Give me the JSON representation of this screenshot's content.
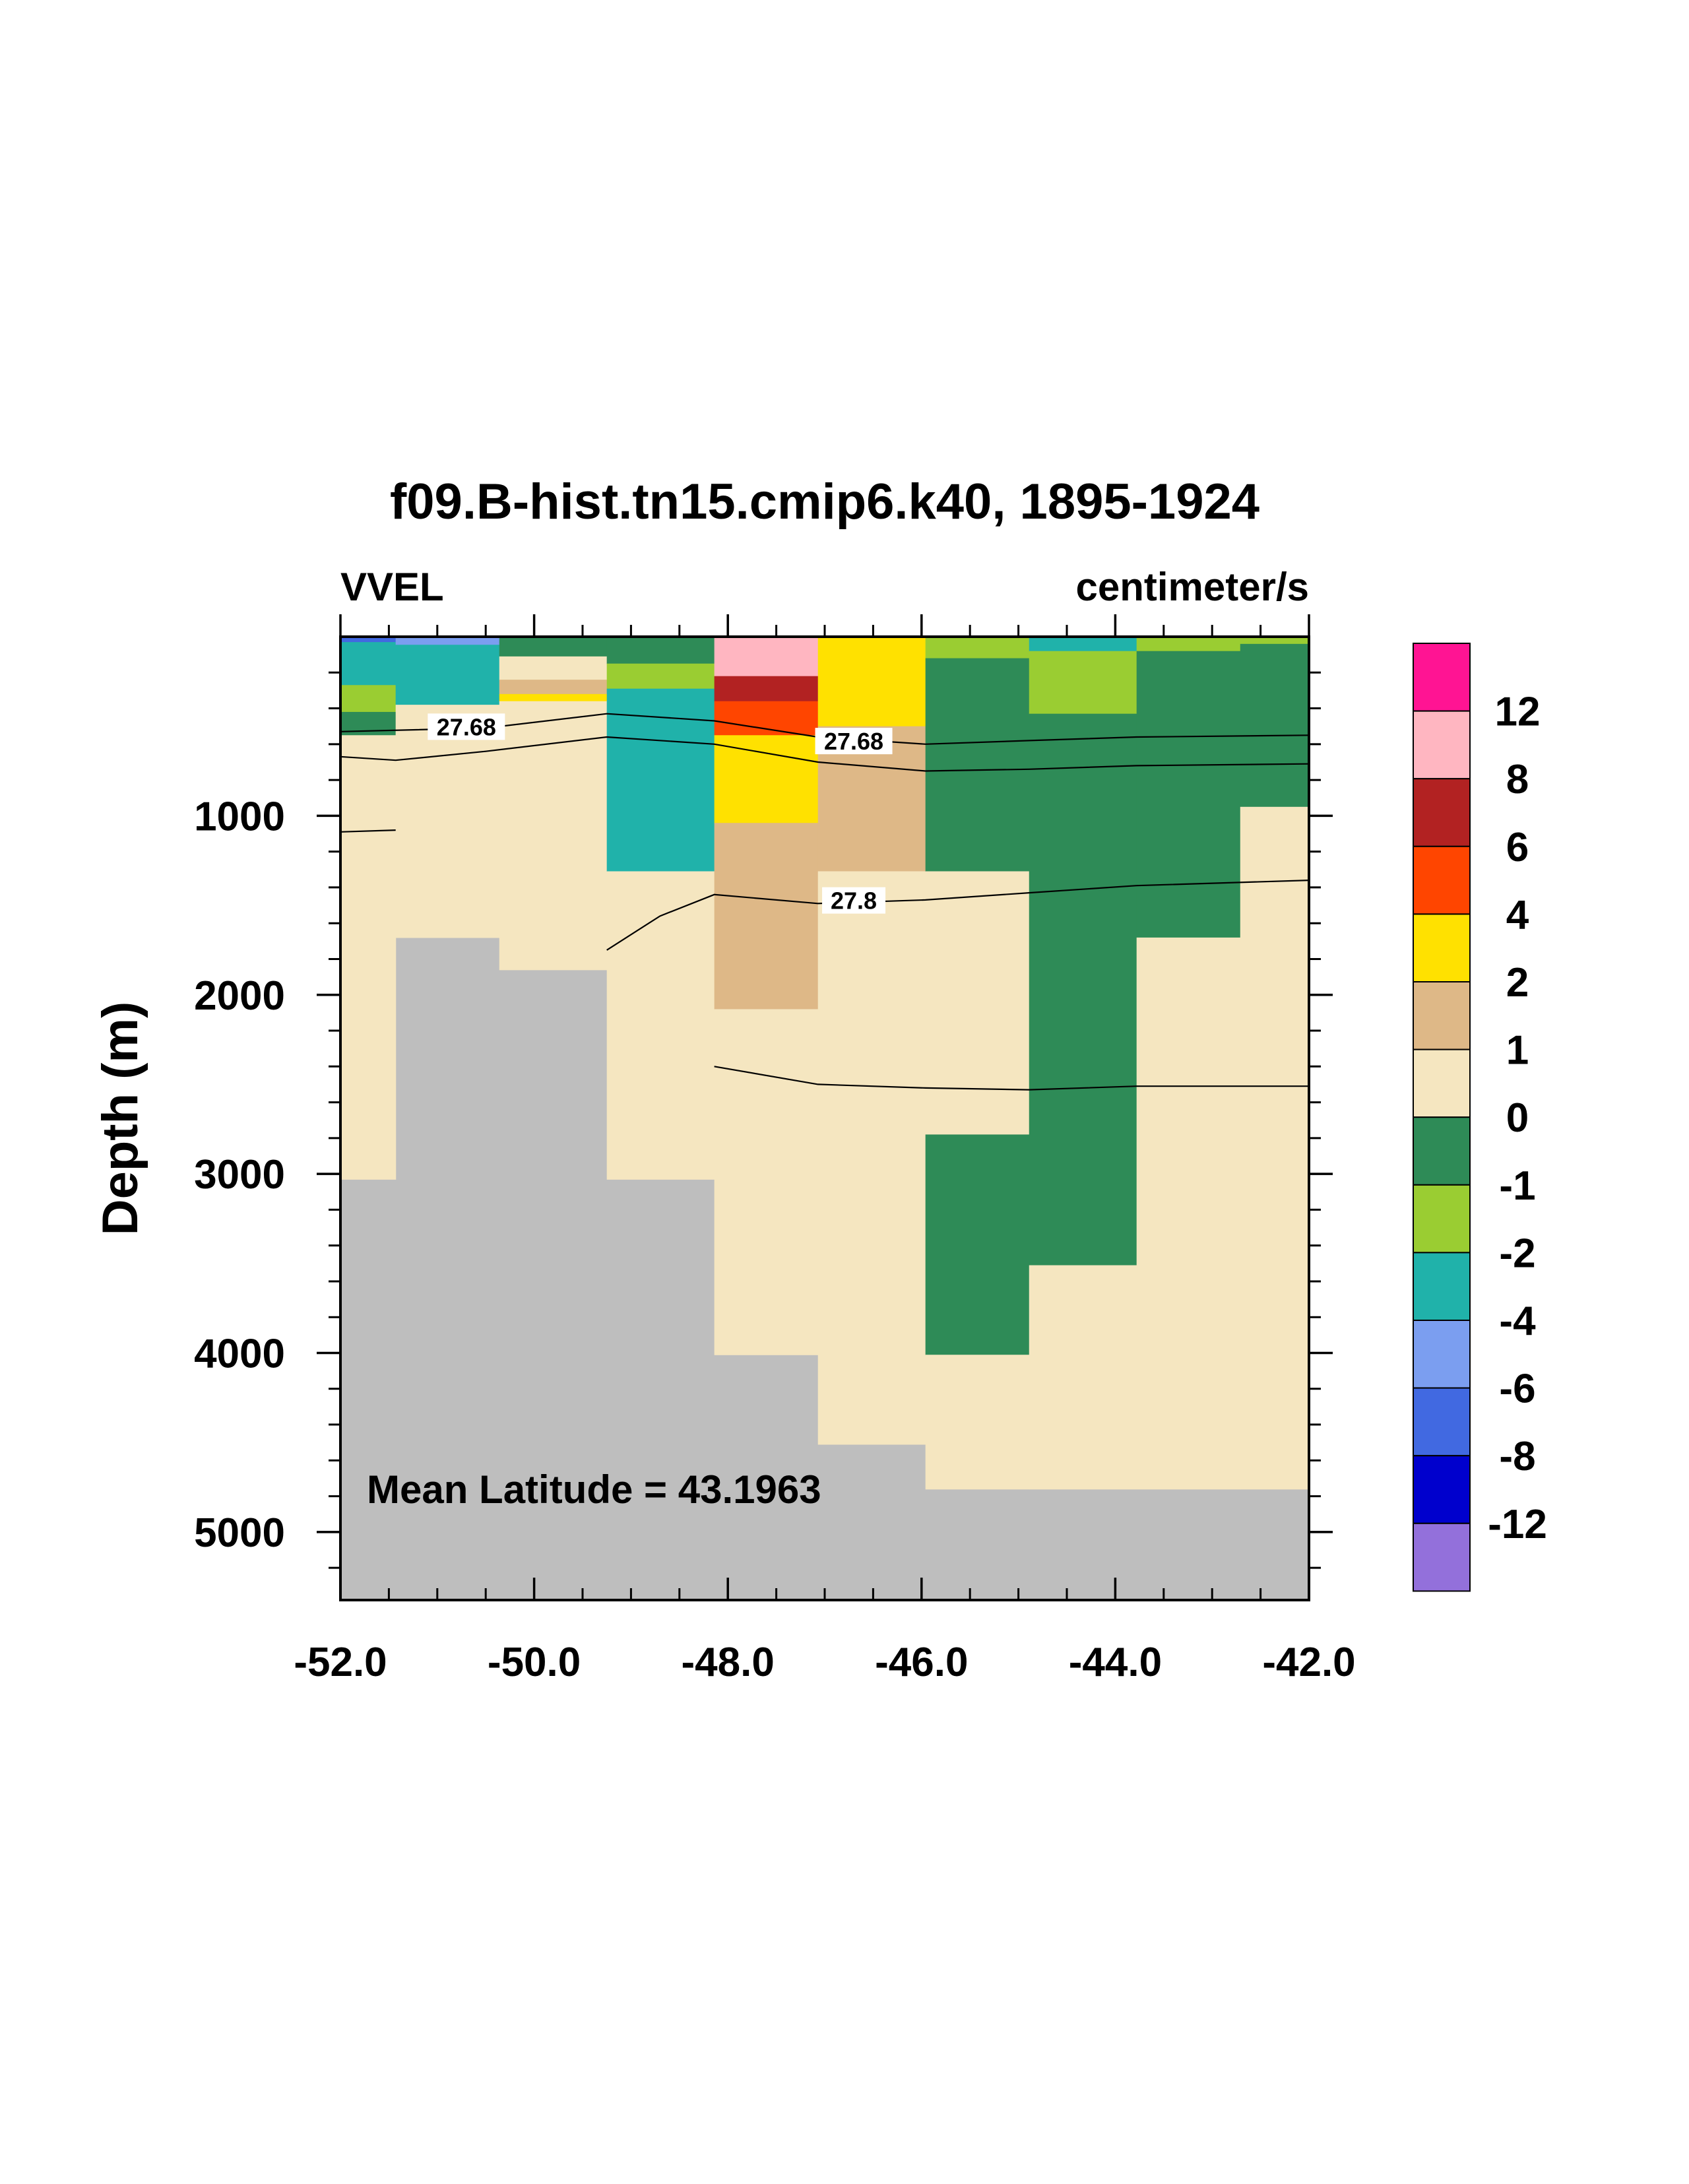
{
  "chart_data": {
    "type": "heatmap",
    "title": "f09.B-hist.tn15.cmip6.k40, 1895-1924",
    "left_string": "VVEL",
    "right_string": "centimeter/s",
    "ylabel": "Depth (m)",
    "xlabel": "",
    "annotation": "Mean Latitude = 43.1963",
    "xlim": [
      -52.0,
      -42.0
    ],
    "ylim": [
      0,
      5380
    ],
    "y_reversed": true,
    "x_ticks": [
      -52,
      -50,
      -48,
      -46,
      -44,
      -42
    ],
    "x_tick_labels": [
      "-52.0",
      "-50.0",
      "-48.0",
      "-46.0",
      "-44.0",
      "-42.0"
    ],
    "y_ticks": [
      1000,
      2000,
      3000,
      4000,
      5000
    ],
    "y_tick_labels": [
      "1000",
      "2000",
      "3000",
      "4000",
      "5000"
    ],
    "missing_color": "#bebebe",
    "colorbar": {
      "labels": [
        "12",
        "8",
        "6",
        "4",
        "2",
        "1",
        "0",
        "-1",
        "-2",
        "-4",
        "-6",
        "-8",
        "-12"
      ],
      "colors_top_to_bottom": [
        "#ff1493",
        "#ffb6c1",
        "#b22222",
        "#ff4500",
        "#ffe100",
        "#deb887",
        "#f5e6c0",
        "#2e8b57",
        "#9acd32",
        "#20b2aa",
        "#7b9ef0",
        "#4169e1",
        "#0000cd",
        "#9370db"
      ]
    },
    "x_edges": [
      -52.0,
      -51.43,
      -50.36,
      -49.25,
      -48.14,
      -47.07,
      -45.96,
      -44.89,
      -43.78,
      -42.71,
      -42.0
    ],
    "columns": [
      {
        "bottom": 3030,
        "cells": [
          [
            0,
            30,
            "#4169e1"
          ],
          [
            30,
            270,
            "#20b2aa"
          ],
          [
            270,
            420,
            "#9acd32"
          ],
          [
            420,
            550,
            "#2e8b57"
          ],
          [
            550,
            3030,
            "#f5e6c0"
          ]
        ]
      },
      {
        "bottom": 1680,
        "cells": [
          [
            0,
            45,
            "#7b9ef0"
          ],
          [
            45,
            380,
            "#20b2aa"
          ],
          [
            380,
            1680,
            "#f5e6c0"
          ]
        ]
      },
      {
        "bottom": 1860,
        "cells": [
          [
            0,
            110,
            "#2e8b57"
          ],
          [
            110,
            240,
            "#f5e6c0"
          ],
          [
            240,
            320,
            "#deb887"
          ],
          [
            320,
            360,
            "#ffe100"
          ],
          [
            360,
            1860,
            "#f5e6c0"
          ]
        ]
      },
      {
        "bottom": 3030,
        "cells": [
          [
            0,
            150,
            "#2e8b57"
          ],
          [
            150,
            290,
            "#9acd32"
          ],
          [
            290,
            1310,
            "#20b2aa"
          ],
          [
            1310,
            3030,
            "#f5e6c0"
          ]
        ]
      },
      {
        "bottom": 4010,
        "cells": [
          [
            0,
            220,
            "#ffb6c1"
          ],
          [
            220,
            360,
            "#b22222"
          ],
          [
            360,
            550,
            "#ff4500"
          ],
          [
            550,
            1040,
            "#ffe100"
          ],
          [
            1040,
            2080,
            "#deb887"
          ],
          [
            2080,
            4010,
            "#f5e6c0"
          ]
        ]
      },
      {
        "bottom": 4510,
        "cells": [
          [
            0,
            500,
            "#ffe100"
          ],
          [
            500,
            1310,
            "#deb887"
          ],
          [
            1310,
            4510,
            "#f5e6c0"
          ]
        ]
      },
      {
        "bottom": 4760,
        "cells": [
          [
            0,
            120,
            "#9acd32"
          ],
          [
            120,
            1310,
            "#2e8b57"
          ],
          [
            1310,
            2780,
            "#f5e6c0"
          ],
          [
            2780,
            4010,
            "#2e8b57"
          ],
          [
            4010,
            4760,
            "#f5e6c0"
          ]
        ]
      },
      {
        "bottom": 4760,
        "cells": [
          [
            0,
            80,
            "#20b2aa"
          ],
          [
            80,
            430,
            "#9acd32"
          ],
          [
            430,
            3510,
            "#2e8b57"
          ],
          [
            3510,
            4760,
            "#f5e6c0"
          ]
        ]
      },
      {
        "bottom": 4760,
        "cells": [
          [
            0,
            80,
            "#9acd32"
          ],
          [
            80,
            1680,
            "#2e8b57"
          ],
          [
            1680,
            4760,
            "#f5e6c0"
          ]
        ]
      },
      {
        "bottom": 4760,
        "cells": [
          [
            0,
            40,
            "#9acd32"
          ],
          [
            40,
            950,
            "#2e8b57"
          ],
          [
            950,
            4760,
            "#f5e6c0"
          ]
        ]
      }
    ],
    "contours": [
      {
        "level": "27.68",
        "label_at": [
          -50.7,
          510
        ],
        "points": [
          [
            -52.0,
            530
          ],
          [
            -50.5,
            510
          ],
          [
            -49.25,
            430
          ],
          [
            -48.14,
            470
          ],
          [
            -47.07,
            560
          ],
          [
            -45.96,
            600
          ],
          [
            -44.89,
            580
          ],
          [
            -43.78,
            560
          ],
          [
            -42.0,
            550
          ]
        ]
      },
      {
        "level": "27.68",
        "label_at": [
          -46.7,
          590
        ],
        "points": []
      },
      {
        "level": "",
        "label_at": null,
        "points": [
          [
            -52.0,
            670
          ],
          [
            -51.43,
            690
          ],
          [
            -50.5,
            640
          ],
          [
            -49.25,
            560
          ],
          [
            -48.14,
            600
          ],
          [
            -47.07,
            700
          ],
          [
            -45.96,
            750
          ],
          [
            -44.89,
            740
          ],
          [
            -43.78,
            720
          ],
          [
            -42.0,
            710
          ]
        ]
      },
      {
        "level": "",
        "label_at": null,
        "points": [
          [
            -52.0,
            1090
          ],
          [
            -51.43,
            1080
          ]
        ]
      },
      {
        "level": "27.8",
        "label_at": [
          -46.7,
          1480
        ],
        "points": [
          [
            -49.25,
            1750
          ],
          [
            -48.7,
            1560
          ],
          [
            -48.14,
            1440
          ],
          [
            -47.07,
            1490
          ],
          [
            -45.96,
            1470
          ],
          [
            -44.89,
            1430
          ],
          [
            -43.78,
            1390
          ],
          [
            -42.0,
            1360
          ]
        ]
      },
      {
        "level": "",
        "label_at": null,
        "points": [
          [
            -48.14,
            2400
          ],
          [
            -47.07,
            2500
          ],
          [
            -45.96,
            2520
          ],
          [
            -44.89,
            2530
          ],
          [
            -43.78,
            2510
          ],
          [
            -42.0,
            2510
          ]
        ]
      }
    ]
  }
}
